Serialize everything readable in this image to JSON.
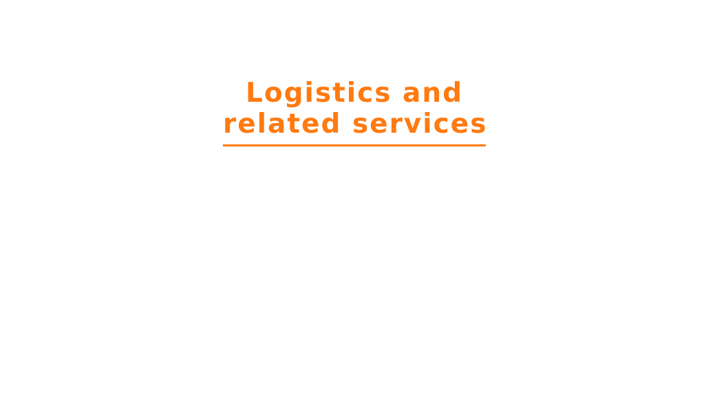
{
  "hero": {
    "title_line1": "Logistics and",
    "title_line2": "related services"
  },
  "colors": {
    "accent": "#ff7a10",
    "background": "#ffffff"
  }
}
